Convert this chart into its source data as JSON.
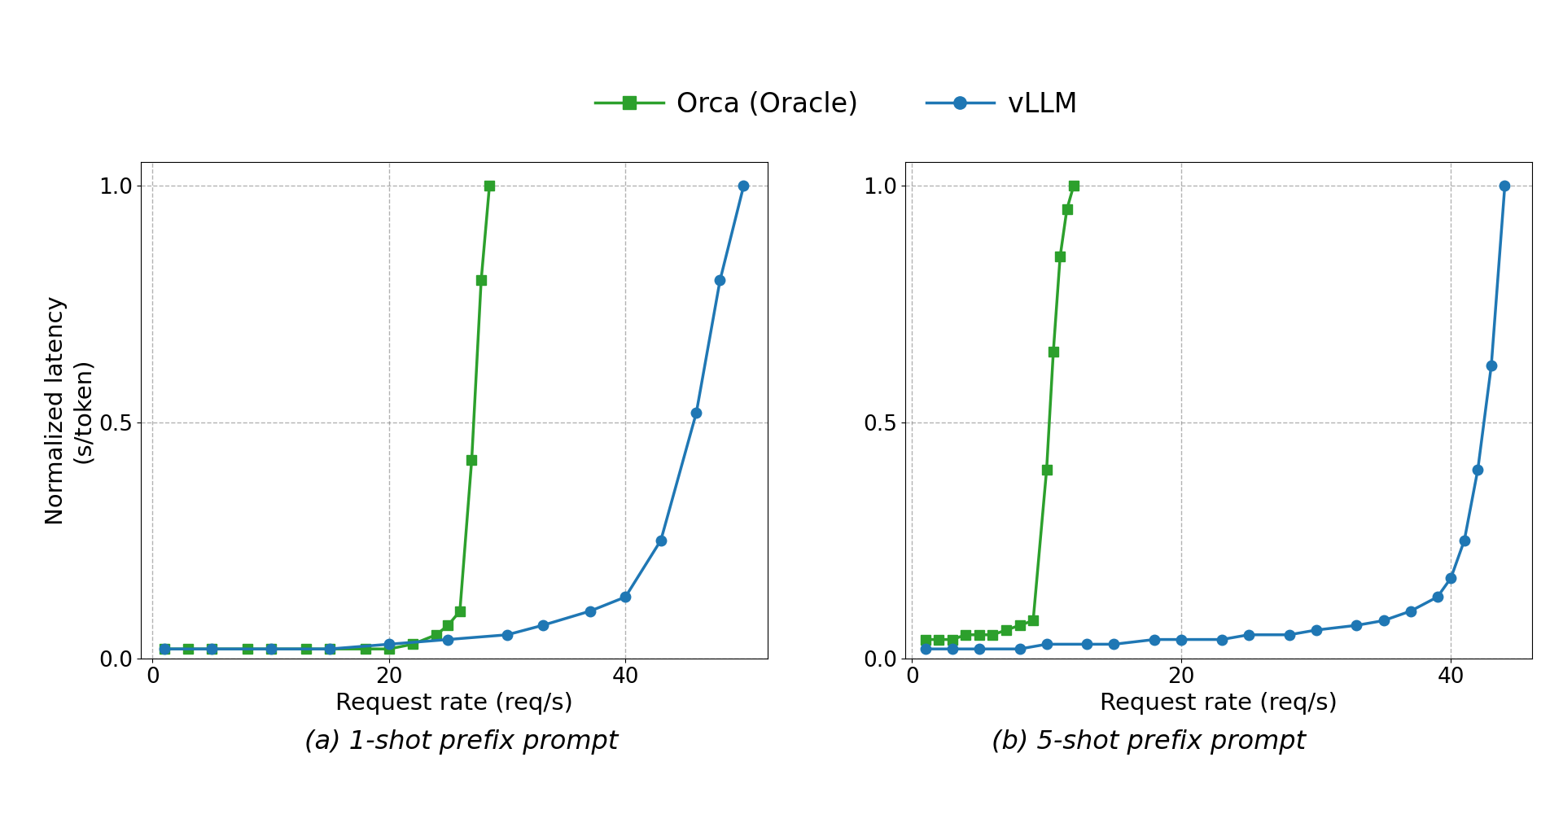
{
  "title": "",
  "ylabel": "Normalized latency\n(s/token)",
  "xlabel": "Request rate (req/s)",
  "caption_a": "(a) 1-shot prefix prompt",
  "caption_b": "(b) 5-shot prefix prompt",
  "legend_labels": [
    "Orca (Oracle)",
    "vLLM"
  ],
  "orca_color": "#2ca02c",
  "vllm_color": "#1f77b4",
  "ylim": [
    0.0,
    1.05
  ],
  "yticks": [
    0.0,
    0.5,
    1.0
  ],
  "background_color": "#ffffff",
  "plot_a": {
    "xlim": [
      -1,
      52
    ],
    "xticks": [
      0,
      20,
      40
    ],
    "orca_x": [
      1,
      3,
      5,
      8,
      10,
      13,
      15,
      18,
      20,
      22,
      24,
      25,
      26,
      27,
      27.8,
      28.5
    ],
    "orca_y": [
      0.02,
      0.02,
      0.02,
      0.02,
      0.02,
      0.02,
      0.02,
      0.02,
      0.02,
      0.03,
      0.05,
      0.07,
      0.1,
      0.42,
      0.8,
      1.0
    ],
    "vllm_x": [
      1,
      5,
      10,
      15,
      20,
      25,
      30,
      33,
      37,
      40,
      43,
      46,
      48,
      50
    ],
    "vllm_y": [
      0.02,
      0.02,
      0.02,
      0.02,
      0.03,
      0.04,
      0.05,
      0.07,
      0.1,
      0.13,
      0.25,
      0.52,
      0.8,
      1.0
    ]
  },
  "plot_b": {
    "xlim": [
      -0.5,
      46
    ],
    "xticks": [
      0,
      20,
      40
    ],
    "orca_x": [
      1,
      2,
      3,
      4,
      5,
      6,
      7,
      8,
      9,
      10,
      10.5,
      11,
      11.5,
      12
    ],
    "orca_y": [
      0.04,
      0.04,
      0.04,
      0.05,
      0.05,
      0.05,
      0.06,
      0.07,
      0.08,
      0.4,
      0.65,
      0.85,
      0.95,
      1.0
    ],
    "vllm_x": [
      1,
      3,
      5,
      8,
      10,
      13,
      15,
      18,
      20,
      23,
      25,
      28,
      30,
      33,
      35,
      37,
      39,
      40,
      41,
      42,
      43,
      44
    ],
    "vllm_y": [
      0.02,
      0.02,
      0.02,
      0.02,
      0.03,
      0.03,
      0.03,
      0.04,
      0.04,
      0.04,
      0.05,
      0.05,
      0.06,
      0.07,
      0.08,
      0.1,
      0.13,
      0.17,
      0.25,
      0.4,
      0.62,
      1.0
    ]
  }
}
